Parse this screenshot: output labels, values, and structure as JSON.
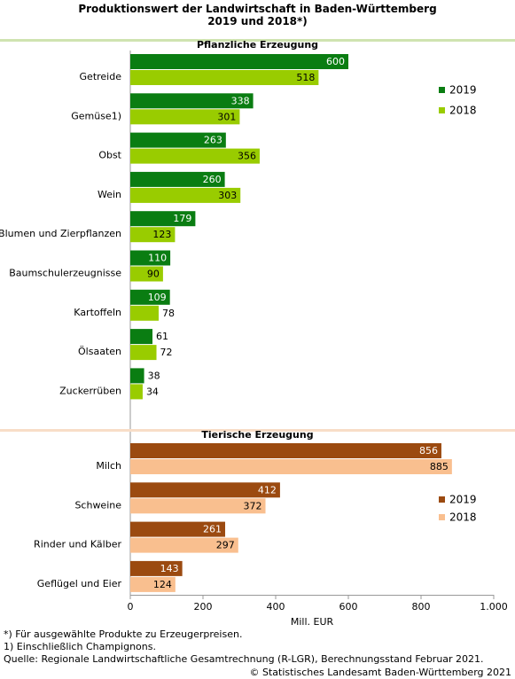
{
  "title_line1": "Produktionswert der Landwirtschaft in Baden-Württemberg",
  "title_line2": "2019 und 2018*)",
  "chart_data": {
    "type": "bar",
    "orientation": "horizontal",
    "xlabel": "Mill. EUR",
    "xlim": [
      0,
      1000
    ],
    "xticks": [
      "0",
      "200",
      "400",
      "600",
      "800",
      "1.000"
    ],
    "grid": false,
    "panels": [
      {
        "title": "Pflanzliche Erzeugung",
        "categories": [
          "Getreide",
          "Gemüse1)",
          "Obst",
          "Wein",
          "Blumen und Zierpflanzen",
          "Baumschulerzeugnisse",
          "Kartoffeln",
          "Ölsaaten",
          "Zuckerrüben"
        ],
        "series": [
          {
            "name": "2019",
            "color": "#0a7d12",
            "values": [
              600,
              338,
              263,
              260,
              179,
              110,
              109,
              61,
              38
            ]
          },
          {
            "name": "2018",
            "color": "#99cc00",
            "values": [
              518,
              301,
              356,
              303,
              123,
              90,
              78,
              72,
              34
            ]
          }
        ],
        "legend_position": "right"
      },
      {
        "title": "Tierische Erzeugung",
        "categories": [
          "Milch",
          "Schweine",
          "Rinder und Kälber",
          "Geflügel und Eier"
        ],
        "series": [
          {
            "name": "2019",
            "color": "#9b4a10",
            "values": [
              856,
              412,
              261,
              143
            ]
          },
          {
            "name": "2018",
            "color": "#f9bf8f",
            "values": [
              885,
              372,
              297,
              124
            ]
          }
        ],
        "legend_position": "right"
      }
    ]
  },
  "footnotes": [
    "*) Für ausgewählte Produkte zu Erzeugerpreisen.",
    "1) Einschließlich Champignons.",
    "Quelle: Regionale Landwirtschaftliche Gesamtrechnung (R-LGR), Berechnungsstand Februar 2021."
  ],
  "copyright": "© Statistisches Landesamt Baden-Württemberg 2021"
}
